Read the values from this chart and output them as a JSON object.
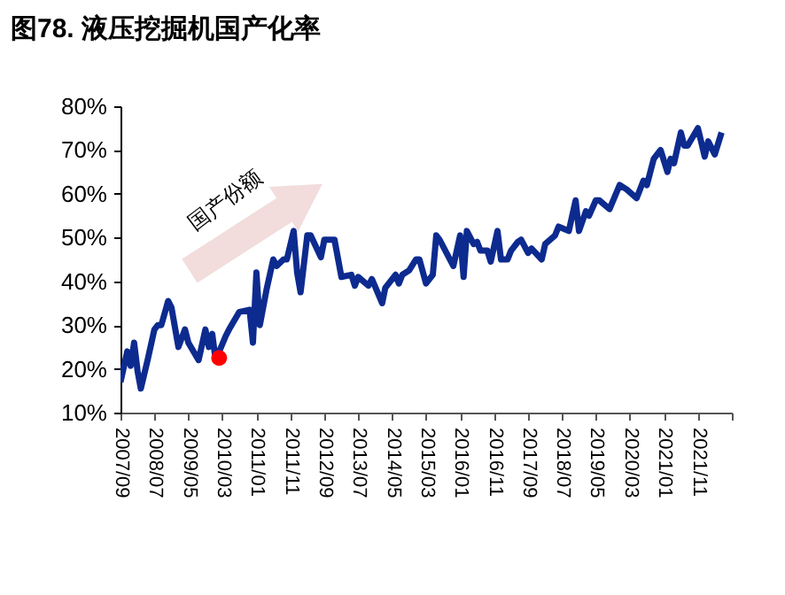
{
  "chart_data": {
    "type": "line",
    "title": "图78. 液压挖掘机国产化率",
    "x": [
      "2007-09",
      "2007-11",
      "2007-12",
      "2008-01",
      "2008-02",
      "2008-03",
      "2008-05",
      "2008-07",
      "2008-08",
      "2008-09",
      "2008-11",
      "2008-12",
      "2009-02",
      "2009-04",
      "2009-05",
      "2009-08",
      "2009-10",
      "2009-11",
      "2009-12",
      "2010-01",
      "2010-04",
      "2010-05",
      "2010-08",
      "2010-11",
      "2010-12",
      "2011-01",
      "2011-02",
      "2011-04",
      "2011-06",
      "2011-07",
      "2011-09",
      "2011-10",
      "2011-12",
      "2012-01",
      "2012-02",
      "2012-04",
      "2012-05",
      "2012-08",
      "2012-09",
      "2012-12",
      "2013-02",
      "2013-05",
      "2013-06",
      "2013-07",
      "2013-10",
      "2013-11",
      "2014-02",
      "2014-03",
      "2014-06",
      "2014-07",
      "2014-08",
      "2014-10",
      "2014-12",
      "2015-01",
      "2015-03",
      "2015-05",
      "2015-06",
      "2015-07",
      "2015-10",
      "2015-11",
      "2016-01",
      "2016-02",
      "2016-03",
      "2016-05",
      "2016-06",
      "2016-07",
      "2016-09",
      "2016-10",
      "2016-12",
      "2017-01",
      "2017-03",
      "2017-04",
      "2017-06",
      "2017-07",
      "2017-09",
      "2017-10",
      "2018-01",
      "2018-02",
      "2018-05",
      "2018-06",
      "2018-09",
      "2018-11",
      "2018-12",
      "2019-02",
      "2019-03",
      "2019-05",
      "2019-06",
      "2019-09",
      "2019-12",
      "2020-02",
      "2020-05",
      "2020-07",
      "2020-08",
      "2020-10",
      "2020-12",
      "2021-02",
      "2021-03",
      "2021-04",
      "2021-06",
      "2021-07",
      "2021-08",
      "2021-11",
      "2022-01",
      "2022-02",
      "2022-04",
      "2022-06"
    ],
    "series": [
      {
        "color": "#0d2b8f",
        "values": [
          17,
          24,
          20.7,
          26,
          19.5,
          15.5,
          22,
          29,
          30,
          30,
          35.5,
          34,
          25,
          29,
          26,
          22,
          29,
          25,
          28,
          22,
          27.5,
          29,
          33,
          33.5,
          26,
          42,
          30,
          38,
          45,
          43.5,
          45,
          45,
          51.5,
          42,
          37.5,
          50.5,
          50.5,
          45.5,
          49.5,
          49.5,
          41,
          41.5,
          39,
          41,
          39,
          40.5,
          35,
          38.5,
          41.5,
          39.5,
          41.5,
          42.5,
          45,
          45,
          39.5,
          41.5,
          50.5,
          49.5,
          45,
          43.5,
          50.5,
          41,
          51.5,
          48.5,
          49,
          47,
          47,
          44.5,
          51.5,
          45,
          45,
          47,
          49,
          49.5,
          46.5,
          47.5,
          45,
          48.5,
          50.5,
          52.5,
          51.5,
          58.5,
          51.5,
          56,
          55,
          58.5,
          58.5,
          56.5,
          62,
          61,
          59,
          63,
          62,
          68,
          70,
          65,
          68,
          67,
          74,
          71,
          71,
          75,
          68.5,
          72,
          69,
          74
        ]
      },
      {
        "type": "scatter",
        "color": "#ff0000",
        "marker": "circle",
        "x": [
          "2010-02"
        ],
        "values": [
          22.5
        ]
      }
    ],
    "xlim": [
      "2007-09",
      "2022-09"
    ],
    "xticks": [
      {
        "value": "2007-09",
        "label": "2007/09"
      },
      {
        "value": "2008-07",
        "label": "2008/07"
      },
      {
        "value": "2009-05",
        "label": "2009/05"
      },
      {
        "value": "2010-03",
        "label": "2010/03"
      },
      {
        "value": "2011-01",
        "label": "2011/01"
      },
      {
        "value": "2011-11",
        "label": "2011/11"
      },
      {
        "value": "2012-09",
        "label": "2012/09"
      },
      {
        "value": "2013-07",
        "label": "2013/07"
      },
      {
        "value": "2014-05",
        "label": "2014/05"
      },
      {
        "value": "2015-03",
        "label": "2015/03"
      },
      {
        "value": "2016-01",
        "label": "2016/01"
      },
      {
        "value": "2016-11",
        "label": "2016/11"
      },
      {
        "value": "2017-09",
        "label": "2017/09"
      },
      {
        "value": "2018-07",
        "label": "2018/07"
      },
      {
        "value": "2019-05",
        "label": "2019/05"
      },
      {
        "value": "2020-03",
        "label": "2020/03"
      },
      {
        "value": "2021-01",
        "label": "2021/01"
      },
      {
        "value": "2021-11",
        "label": "2021/11"
      },
      {
        "value": "2022-09",
        "label": null
      }
    ],
    "ylim": [
      10,
      80
    ],
    "yticks": [
      {
        "value": 10,
        "label": "10%"
      },
      {
        "value": 20,
        "label": "20%"
      },
      {
        "value": 30,
        "label": "30%"
      },
      {
        "value": 40,
        "label": "40%"
      },
      {
        "value": 50,
        "label": "50%"
      },
      {
        "value": 60,
        "label": "60%"
      },
      {
        "value": 70,
        "label": "70%"
      },
      {
        "value": 80,
        "label": "80%"
      }
    ],
    "annotations": [
      "国产份额"
    ],
    "grid": false,
    "marker": "none",
    "line_style": "solid"
  }
}
